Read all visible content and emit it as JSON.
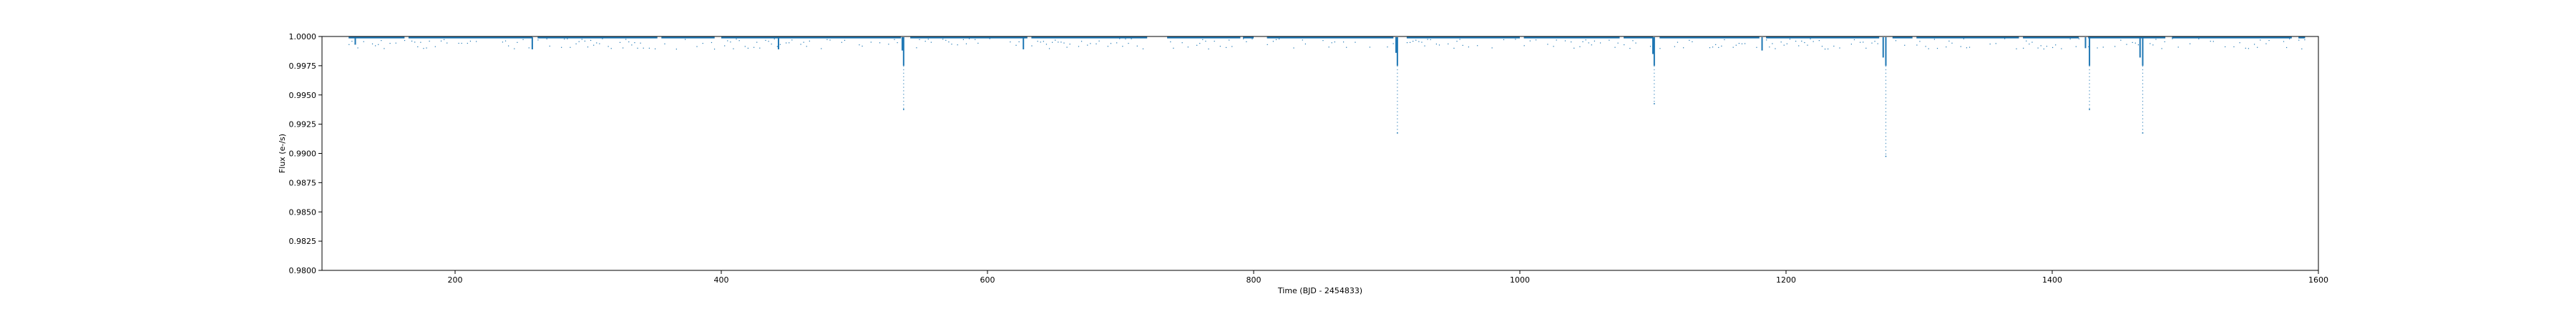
{
  "chart_data": {
    "type": "scatter",
    "title": "",
    "xlabel": "Time (BJD - 2454833)",
    "ylabel": "Flux (e-/s)",
    "xlim": [
      100,
      1600
    ],
    "ylim": [
      0.98,
      1.0
    ],
    "x_ticks": [
      200,
      400,
      600,
      800,
      1000,
      1200,
      1400,
      1600
    ],
    "y_ticks": [
      0.98,
      0.9825,
      0.985,
      0.9875,
      0.99,
      0.9925,
      0.995,
      0.9975,
      1.0
    ],
    "y_tick_labels": [
      "0.9800",
      "0.9825",
      "0.9850",
      "0.9875",
      "0.9900",
      "0.9925",
      "0.9950",
      "0.9975",
      "1.0000"
    ],
    "grid": false,
    "series_color": "#1f77b4",
    "baseline": 0.99985,
    "observing_segments": [
      [
        120,
        162
      ],
      [
        165,
        258
      ],
      [
        262,
        352
      ],
      [
        355,
        395
      ],
      [
        400,
        535
      ],
      [
        542,
        630
      ],
      [
        633,
        720
      ],
      [
        735,
        790
      ],
      [
        792,
        800
      ],
      [
        810,
        905
      ],
      [
        915,
        1000
      ],
      [
        1003,
        1075
      ],
      [
        1078,
        1100
      ],
      [
        1105,
        1180
      ],
      [
        1185,
        1270
      ],
      [
        1280,
        1295
      ],
      [
        1298,
        1375
      ],
      [
        1378,
        1420
      ],
      [
        1427,
        1485
      ],
      [
        1490,
        1580
      ],
      [
        1585,
        1590
      ]
    ],
    "dips": [
      {
        "t": 125,
        "depth": 0.9993
      },
      {
        "t": 258,
        "depth": 0.9989
      },
      {
        "t": 443,
        "depth": 0.9989
      },
      {
        "t": 536,
        "depth": 0.9988
      },
      {
        "t": 537,
        "depth": 0.9938
      },
      {
        "t": 627,
        "depth": 0.9989
      },
      {
        "t": 907,
        "depth": 0.9986
      },
      {
        "t": 908,
        "depth": 0.9918
      },
      {
        "t": 1100,
        "depth": 0.9985
      },
      {
        "t": 1101,
        "depth": 0.9943
      },
      {
        "t": 1182,
        "depth": 0.9988
      },
      {
        "t": 1273,
        "depth": 0.9982
      },
      {
        "t": 1275,
        "depth": 0.9898
      },
      {
        "t": 1425,
        "depth": 0.999
      },
      {
        "t": 1428,
        "depth": 0.9938
      },
      {
        "t": 1466,
        "depth": 0.9982
      },
      {
        "t": 1468,
        "depth": 0.9918
      }
    ]
  }
}
